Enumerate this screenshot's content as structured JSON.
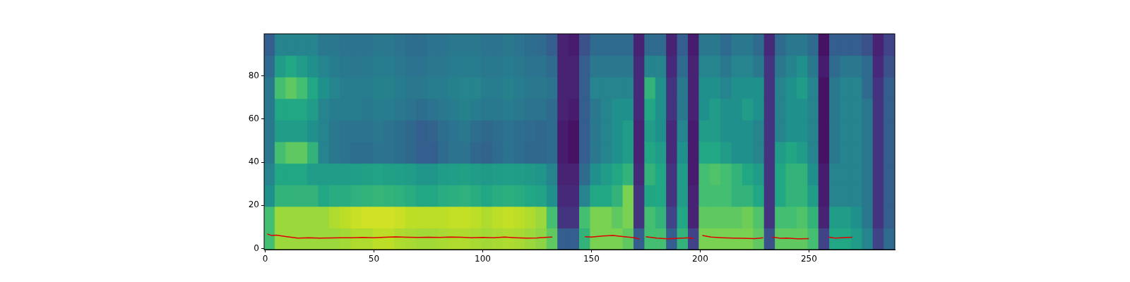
{
  "chart_data": {
    "type": "heatmap",
    "xlim": [
      -0.5,
      289.5
    ],
    "xticks": [
      0,
      50,
      100,
      150,
      200,
      250
    ],
    "ylim": [
      -0.5,
      99.5
    ],
    "yticks": [
      0,
      20,
      40,
      60,
      80
    ],
    "grid": false,
    "heatmap": {
      "zlim": [
        0,
        1
      ],
      "x_edges": [
        -0.5,
        4.5,
        9.5,
        14.5,
        19.5,
        24.5,
        29.5,
        34.5,
        39.5,
        44.5,
        49.5,
        54.5,
        59.5,
        64.5,
        69.5,
        74.5,
        79.5,
        84.5,
        89.5,
        94.5,
        99.5,
        104.5,
        109.5,
        114.5,
        119.5,
        124.5,
        129.5,
        134.5,
        139.5,
        144.5,
        149.5,
        154.5,
        159.5,
        164.5,
        169.5,
        174.5,
        179.5,
        184.5,
        189.5,
        194.5,
        199.5,
        204.5,
        209.5,
        214.5,
        219.5,
        224.5,
        229.5,
        234.5,
        239.5,
        244.5,
        249.5,
        254.5,
        259.5,
        264.5,
        269.5,
        274.5,
        279.5,
        284.5,
        289.5
      ],
      "y_edges": [
        -0.5,
        9.5,
        19.5,
        29.5,
        39.5,
        49.5,
        59.5,
        69.5,
        79.5,
        89.5,
        99.5
      ],
      "values_by_column": [
        [
          0.7,
          0.7,
          0.5,
          0.45,
          0.4,
          0.4,
          0.4,
          0.4,
          0.35,
          0.3
        ],
        [
          0.85,
          0.85,
          0.65,
          0.6,
          0.7,
          0.55,
          0.6,
          0.7,
          0.55,
          0.45
        ],
        [
          0.85,
          0.85,
          0.65,
          0.6,
          0.75,
          0.55,
          0.6,
          0.75,
          0.6,
          0.45
        ],
        [
          0.85,
          0.85,
          0.65,
          0.6,
          0.75,
          0.55,
          0.6,
          0.7,
          0.55,
          0.45
        ],
        [
          0.85,
          0.85,
          0.65,
          0.55,
          0.65,
          0.5,
          0.55,
          0.6,
          0.5,
          0.45
        ],
        [
          0.85,
          0.85,
          0.6,
          0.55,
          0.45,
          0.45,
          0.45,
          0.5,
          0.45,
          0.4
        ],
        [
          0.85,
          0.88,
          0.62,
          0.55,
          0.4,
          0.4,
          0.42,
          0.45,
          0.42,
          0.4
        ],
        [
          0.86,
          0.9,
          0.62,
          0.55,
          0.38,
          0.38,
          0.42,
          0.42,
          0.4,
          0.38
        ],
        [
          0.88,
          0.92,
          0.64,
          0.56,
          0.36,
          0.38,
          0.42,
          0.42,
          0.4,
          0.38
        ],
        [
          0.88,
          0.93,
          0.65,
          0.57,
          0.36,
          0.38,
          0.4,
          0.42,
          0.4,
          0.38
        ],
        [
          0.9,
          0.93,
          0.66,
          0.58,
          0.38,
          0.4,
          0.42,
          0.44,
          0.42,
          0.4
        ],
        [
          0.9,
          0.93,
          0.65,
          0.57,
          0.38,
          0.38,
          0.42,
          0.44,
          0.42,
          0.4
        ],
        [
          0.88,
          0.92,
          0.64,
          0.56,
          0.36,
          0.36,
          0.4,
          0.42,
          0.4,
          0.38
        ],
        [
          0.87,
          0.9,
          0.62,
          0.55,
          0.34,
          0.34,
          0.38,
          0.4,
          0.38,
          0.36
        ],
        [
          0.86,
          0.9,
          0.6,
          0.52,
          0.3,
          0.3,
          0.36,
          0.4,
          0.38,
          0.36
        ],
        [
          0.86,
          0.9,
          0.6,
          0.52,
          0.3,
          0.32,
          0.38,
          0.42,
          0.4,
          0.38
        ],
        [
          0.87,
          0.9,
          0.62,
          0.55,
          0.35,
          0.36,
          0.4,
          0.42,
          0.4,
          0.38
        ],
        [
          0.88,
          0.91,
          0.63,
          0.56,
          0.38,
          0.38,
          0.42,
          0.44,
          0.42,
          0.4
        ],
        [
          0.88,
          0.91,
          0.64,
          0.57,
          0.38,
          0.4,
          0.44,
          0.45,
          0.42,
          0.4
        ],
        [
          0.87,
          0.9,
          0.62,
          0.55,
          0.34,
          0.36,
          0.42,
          0.45,
          0.42,
          0.4
        ],
        [
          0.86,
          0.88,
          0.6,
          0.54,
          0.32,
          0.34,
          0.4,
          0.42,
          0.4,
          0.38
        ],
        [
          0.87,
          0.9,
          0.62,
          0.55,
          0.35,
          0.36,
          0.4,
          0.42,
          0.4,
          0.38
        ],
        [
          0.88,
          0.91,
          0.63,
          0.56,
          0.38,
          0.38,
          0.42,
          0.44,
          0.42,
          0.4
        ],
        [
          0.87,
          0.9,
          0.62,
          0.55,
          0.36,
          0.36,
          0.4,
          0.42,
          0.4,
          0.38
        ],
        [
          0.85,
          0.88,
          0.6,
          0.54,
          0.34,
          0.35,
          0.38,
          0.4,
          0.38,
          0.36
        ],
        [
          0.83,
          0.85,
          0.58,
          0.52,
          0.34,
          0.34,
          0.38,
          0.4,
          0.38,
          0.35
        ],
        [
          0.75,
          0.7,
          0.5,
          0.45,
          0.35,
          0.35,
          0.35,
          0.38,
          0.35,
          0.3
        ],
        [
          0.3,
          0.15,
          0.12,
          0.1,
          0.08,
          0.08,
          0.1,
          0.1,
          0.1,
          0.1
        ],
        [
          0.3,
          0.15,
          0.12,
          0.1,
          0.05,
          0.05,
          0.08,
          0.1,
          0.1,
          0.08
        ],
        [
          0.65,
          0.7,
          0.45,
          0.35,
          0.3,
          0.3,
          0.3,
          0.3,
          0.3,
          0.25
        ],
        [
          0.8,
          0.8,
          0.6,
          0.5,
          0.4,
          0.4,
          0.4,
          0.45,
          0.4,
          0.35
        ],
        [
          0.8,
          0.8,
          0.6,
          0.55,
          0.45,
          0.45,
          0.45,
          0.45,
          0.4,
          0.35
        ],
        [
          0.8,
          0.75,
          0.65,
          0.6,
          0.5,
          0.5,
          0.5,
          0.45,
          0.4,
          0.35
        ],
        [
          0.75,
          0.8,
          0.8,
          0.65,
          0.55,
          0.55,
          0.5,
          0.45,
          0.4,
          0.35
        ],
        [
          0.3,
          0.15,
          0.15,
          0.12,
          0.1,
          0.1,
          0.12,
          0.12,
          0.12,
          0.1
        ],
        [
          0.7,
          0.7,
          0.6,
          0.65,
          0.6,
          0.55,
          0.6,
          0.65,
          0.45,
          0.35
        ],
        [
          0.7,
          0.65,
          0.6,
          0.6,
          0.55,
          0.5,
          0.5,
          0.5,
          0.45,
          0.35
        ],
        [
          0.3,
          0.2,
          0.15,
          0.15,
          0.12,
          0.12,
          0.15,
          0.15,
          0.12,
          0.1
        ],
        [
          0.65,
          0.6,
          0.55,
          0.55,
          0.5,
          0.45,
          0.4,
          0.4,
          0.35,
          0.3
        ],
        [
          0.2,
          0.1,
          0.1,
          0.08,
          0.08,
          0.08,
          0.1,
          0.1,
          0.1,
          0.08
        ],
        [
          0.8,
          0.75,
          0.7,
          0.7,
          0.6,
          0.55,
          0.5,
          0.5,
          0.45,
          0.4
        ],
        [
          0.8,
          0.75,
          0.7,
          0.72,
          0.6,
          0.55,
          0.55,
          0.5,
          0.45,
          0.4
        ],
        [
          0.8,
          0.75,
          0.7,
          0.7,
          0.55,
          0.5,
          0.5,
          0.45,
          0.4,
          0.35
        ],
        [
          0.8,
          0.75,
          0.65,
          0.65,
          0.5,
          0.5,
          0.5,
          0.5,
          0.45,
          0.4
        ],
        [
          0.8,
          0.78,
          0.65,
          0.6,
          0.5,
          0.5,
          0.55,
          0.5,
          0.45,
          0.4
        ],
        [
          0.75,
          0.72,
          0.6,
          0.55,
          0.45,
          0.45,
          0.5,
          0.5,
          0.4,
          0.35
        ],
        [
          0.25,
          0.15,
          0.15,
          0.15,
          0.15,
          0.15,
          0.15,
          0.15,
          0.15,
          0.12
        ],
        [
          0.75,
          0.7,
          0.6,
          0.6,
          0.55,
          0.45,
          0.45,
          0.45,
          0.4,
          0.35
        ],
        [
          0.75,
          0.7,
          0.65,
          0.65,
          0.6,
          0.5,
          0.5,
          0.5,
          0.45,
          0.4
        ],
        [
          0.75,
          0.72,
          0.65,
          0.65,
          0.55,
          0.5,
          0.5,
          0.55,
          0.5,
          0.4
        ],
        [
          0.7,
          0.65,
          0.55,
          0.5,
          0.45,
          0.45,
          0.45,
          0.45,
          0.4,
          0.35
        ],
        [
          0.2,
          0.1,
          0.08,
          0.08,
          0.05,
          0.05,
          0.05,
          0.05,
          0.08,
          0.05
        ],
        [
          0.6,
          0.55,
          0.45,
          0.45,
          0.4,
          0.4,
          0.4,
          0.4,
          0.35,
          0.3
        ],
        [
          0.6,
          0.55,
          0.45,
          0.45,
          0.45,
          0.45,
          0.45,
          0.45,
          0.4,
          0.3
        ],
        [
          0.55,
          0.5,
          0.45,
          0.45,
          0.45,
          0.45,
          0.45,
          0.45,
          0.4,
          0.3
        ],
        [
          0.45,
          0.4,
          0.4,
          0.4,
          0.4,
          0.4,
          0.4,
          0.35,
          0.35,
          0.25
        ],
        [
          0.2,
          0.15,
          0.15,
          0.15,
          0.15,
          0.15,
          0.15,
          0.15,
          0.12,
          0.1
        ],
        [
          0.35,
          0.3,
          0.3,
          0.3,
          0.3,
          0.3,
          0.3,
          0.3,
          0.25,
          0.2
        ]
      ]
    },
    "series": [
      {
        "type": "line",
        "color": "#e00000",
        "x": [
          1,
          3,
          5,
          10,
          15,
          20,
          25,
          30,
          35,
          40,
          45,
          50,
          55,
          60,
          65,
          70,
          75,
          80,
          85,
          90,
          95,
          100,
          105,
          110,
          115,
          120,
          125,
          130,
          132,
          140,
          147,
          150,
          155,
          160,
          165,
          170,
          172,
          173.5,
          175,
          180,
          185,
          190,
          195,
          197,
          199,
          201,
          205,
          210,
          215,
          220,
          225,
          229,
          231,
          233,
          237,
          240,
          245,
          250,
          255,
          259,
          262,
          265,
          270
        ],
        "values": [
          6.7,
          6,
          6.2,
          5.5,
          4.8,
          5,
          4.8,
          4.9,
          5,
          5,
          5.1,
          5,
          5.2,
          5.4,
          5.2,
          5.1,
          5.2,
          5.1,
          5.3,
          5.2,
          5,
          5.1,
          5,
          5.3,
          5,
          4.8,
          4.9,
          5.2,
          5.3,
          null,
          5.5,
          5.3,
          5.8,
          6,
          5.5,
          5,
          4.3,
          null,
          5.5,
          4.8,
          4.5,
          4.7,
          5,
          4.6,
          null,
          6,
          5.3,
          5,
          4.8,
          4.7,
          4.6,
          5,
          null,
          5.3,
          4.7,
          4.8,
          4.5,
          4.6,
          null,
          5.3,
          4.8,
          5,
          5.2
        ]
      }
    ]
  }
}
